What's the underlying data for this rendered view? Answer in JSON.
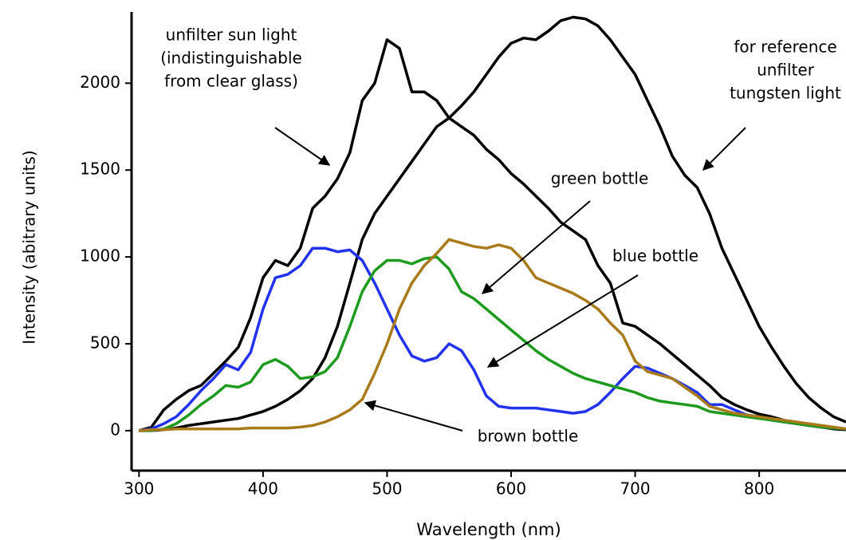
{
  "chart_data": {
    "type": "line",
    "x_label": "Wavelength (nm)",
    "y_label": "Intensity (abitrary units)",
    "x": [
      300,
      310,
      320,
      330,
      340,
      350,
      360,
      370,
      380,
      390,
      400,
      410,
      420,
      430,
      440,
      450,
      460,
      470,
      480,
      490,
      500,
      510,
      520,
      530,
      540,
      550,
      560,
      570,
      580,
      590,
      600,
      610,
      620,
      630,
      640,
      650,
      660,
      670,
      680,
      690,
      700,
      710,
      720,
      730,
      740,
      750,
      760,
      770,
      780,
      790,
      800,
      810,
      820,
      830,
      840,
      850,
      860,
      870
    ],
    "series": [
      {
        "name": "unfilter sun light",
        "color": "#000000",
        "values": [
          0,
          20,
          120,
          180,
          230,
          260,
          330,
          400,
          480,
          650,
          880,
          980,
          950,
          1050,
          1280,
          1350,
          1450,
          1600,
          1900,
          2000,
          2250,
          2200,
          1950,
          1950,
          1900,
          1800,
          1750,
          1700,
          1620,
          1560,
          1480,
          1420,
          1350,
          1280,
          1200,
          1150,
          1100,
          950,
          850,
          620,
          600,
          550,
          500,
          440,
          380,
          320,
          260,
          190,
          150,
          120,
          95,
          80,
          60,
          40,
          30,
          20,
          10,
          5
        ]
      },
      {
        "name": "tungsten light",
        "color": "#000000",
        "values": [
          0,
          0,
          5,
          15,
          30,
          40,
          50,
          60,
          70,
          90,
          110,
          140,
          180,
          230,
          300,
          420,
          600,
          850,
          1100,
          1250,
          1350,
          1450,
          1550,
          1650,
          1750,
          1800,
          1870,
          1950,
          2050,
          2150,
          2230,
          2260,
          2250,
          2300,
          2360,
          2380,
          2370,
          2330,
          2250,
          2150,
          2050,
          1900,
          1750,
          1580,
          1470,
          1400,
          1250,
          1050,
          900,
          750,
          600,
          480,
          370,
          270,
          190,
          130,
          80,
          50
        ]
      },
      {
        "name": "blue bottle",
        "color": "#2233ee",
        "values": [
          0,
          10,
          40,
          80,
          150,
          230,
          300,
          380,
          350,
          450,
          700,
          880,
          900,
          950,
          1050,
          1050,
          1030,
          1040,
          980,
          850,
          700,
          550,
          430,
          400,
          420,
          500,
          460,
          350,
          200,
          140,
          130,
          130,
          130,
          120,
          110,
          100,
          110,
          150,
          220,
          300,
          370,
          360,
          330,
          300,
          260,
          220,
          150,
          150,
          120,
          90,
          80,
          60,
          50,
          40,
          30,
          20,
          15,
          10
        ]
      },
      {
        "name": "green bottle",
        "color": "#1e9a1e",
        "values": [
          0,
          0,
          10,
          40,
          90,
          150,
          200,
          260,
          250,
          280,
          380,
          410,
          370,
          300,
          310,
          340,
          420,
          600,
          800,
          920,
          980,
          980,
          960,
          990,
          1000,
          930,
          800,
          760,
          700,
          640,
          580,
          520,
          460,
          410,
          370,
          330,
          300,
          280,
          260,
          240,
          220,
          190,
          170,
          160,
          150,
          140,
          110,
          100,
          90,
          80,
          70,
          60,
          50,
          40,
          30,
          20,
          15,
          10
        ]
      },
      {
        "name": "brown bottle",
        "color": "#a87a1a",
        "values": [
          0,
          5,
          5,
          10,
          10,
          10,
          10,
          10,
          10,
          15,
          15,
          15,
          15,
          20,
          30,
          50,
          80,
          120,
          180,
          330,
          500,
          700,
          850,
          950,
          1020,
          1100,
          1080,
          1060,
          1050,
          1070,
          1050,
          980,
          880,
          850,
          820,
          790,
          750,
          700,
          620,
          550,
          400,
          340,
          320,
          300,
          250,
          200,
          140,
          120,
          100,
          90,
          80,
          70,
          60,
          50,
          40,
          30,
          20,
          10
        ]
      }
    ],
    "annotations": [
      [
        "unfilter sun light",
        "(indistinguishable",
        "from clear glass)"
      ],
      [
        "for reference",
        "unfilter",
        "tungsten light"
      ],
      [
        "green bottle"
      ],
      [
        "blue bottle"
      ],
      [
        "brown bottle"
      ]
    ],
    "xlim": [
      294,
      870
    ],
    "ylim": [
      -230,
      2410
    ],
    "xticks": [
      300,
      400,
      500,
      600,
      700,
      800
    ],
    "yticks": [
      0,
      500,
      1000,
      1500,
      2000
    ]
  }
}
